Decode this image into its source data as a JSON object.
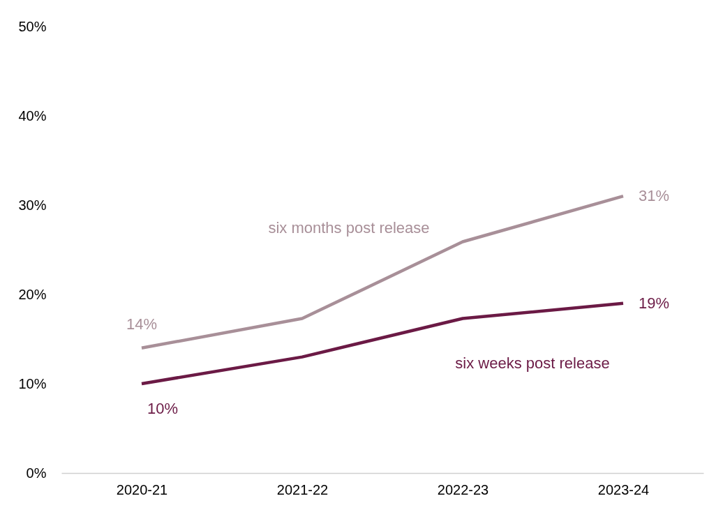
{
  "chart_data": {
    "type": "line",
    "categories": [
      "2020-21",
      "2021-22",
      "2022-23",
      "2023-24"
    ],
    "ylim": [
      0,
      50
    ],
    "yticks": [
      {
        "value": 0,
        "label": "0%"
      },
      {
        "value": 10,
        "label": "10%"
      },
      {
        "value": 20,
        "label": "20%"
      },
      {
        "value": 30,
        "label": "30%"
      },
      {
        "value": 40,
        "label": "40%"
      },
      {
        "value": 50,
        "label": "50%"
      }
    ],
    "series": [
      {
        "name": "six months post release",
        "color": "#a88f98",
        "values": [
          14,
          17.3,
          25.9,
          31
        ],
        "value_labels": [
          "14%",
          null,
          null,
          "31%"
        ]
      },
      {
        "name": "six weeks post release",
        "color": "#6b1a45",
        "values": [
          10,
          13,
          17.3,
          19
        ],
        "value_labels": [
          "10%",
          null,
          null,
          "19%"
        ]
      }
    ]
  }
}
